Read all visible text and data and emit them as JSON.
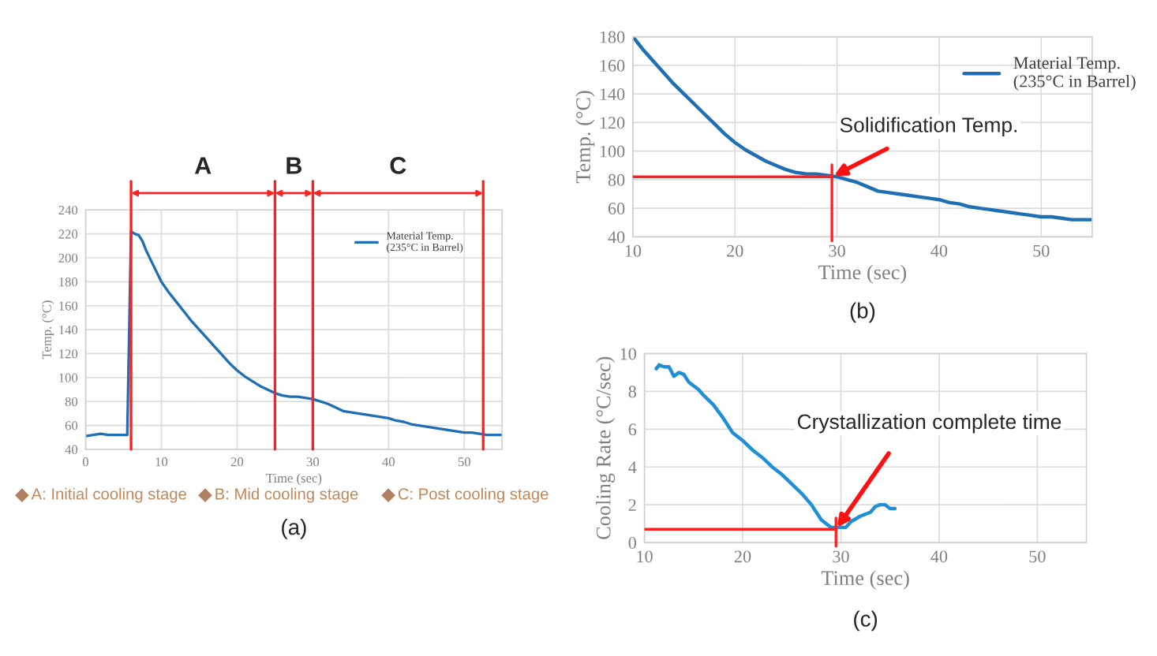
{
  "chart_data": [
    {
      "type": "line",
      "xlabel": "Time (sec)",
      "ylabel": "Temp. (°C)",
      "xlim": [
        0,
        55
      ],
      "ylim": [
        40,
        240
      ],
      "xticks": [
        0,
        10,
        20,
        30,
        40,
        50
      ],
      "yticks": [
        40,
        60,
        80,
        100,
        120,
        140,
        160,
        180,
        200,
        220,
        240
      ],
      "grid": true,
      "legend": "top right",
      "series": [
        {
          "name": "Material Temp.\n(235°C in Barrel)",
          "color": "#1f6fb5",
          "x": [
            0,
            1,
            2,
            3,
            4,
            5,
            5.5,
            6,
            6.5,
            7,
            7.5,
            8,
            9,
            10,
            11,
            12,
            13,
            14,
            15,
            16,
            17,
            18,
            19,
            20,
            21,
            22,
            23,
            24,
            25,
            26,
            27,
            28,
            29,
            30,
            31,
            32,
            33,
            34,
            35,
            36,
            37,
            38,
            39,
            40,
            41,
            42,
            43,
            44,
            45,
            46,
            47,
            48,
            49,
            50,
            51,
            52,
            53,
            54,
            55
          ],
          "values": [
            51,
            52,
            53,
            52,
            52,
            52,
            52,
            222,
            220,
            219,
            214,
            206,
            193,
            180,
            171,
            163,
            155,
            147,
            140,
            133,
            126,
            119,
            112,
            106,
            101,
            97,
            93,
            90,
            87,
            85,
            84,
            84,
            83,
            82,
            80,
            78,
            75,
            72,
            71,
            70,
            69,
            68,
            67,
            66,
            64,
            63,
            61,
            60,
            59,
            58,
            57,
            56,
            55,
            54,
            54,
            53,
            52,
            52,
            52
          ]
        }
      ],
      "ref_lines": [
        {
          "axis": "x",
          "value": 6,
          "color": "#ff2020"
        },
        {
          "axis": "x",
          "value": 25,
          "color": "#ff2020"
        },
        {
          "axis": "x",
          "value": 30,
          "color": "#ff2020"
        },
        {
          "axis": "x",
          "value": 52.5,
          "color": "#ff2020"
        }
      ],
      "annotations": [
        "A",
        "B",
        "C",
        "A: Initial cooling stage",
        "B: Mid cooling stage",
        "C: Post cooling stage",
        "(a)"
      ]
    },
    {
      "type": "line",
      "xlabel": "Time (sec)",
      "ylabel": "Temp. (°C)",
      "xlim": [
        10,
        55
      ],
      "ylim": [
        40,
        180
      ],
      "xticks": [
        10,
        20,
        30,
        40,
        50
      ],
      "yticks": [
        40,
        60,
        80,
        100,
        120,
        140,
        160,
        180
      ],
      "grid": true,
      "legend": "top right",
      "series": [
        {
          "name": "Material Temp.\n(235°C in Barrel)",
          "color": "#1f6fb5",
          "x": [
            10,
            11,
            12,
            13,
            14,
            15,
            16,
            17,
            18,
            19,
            20,
            21,
            22,
            23,
            24,
            25,
            26,
            27,
            28,
            29,
            30,
            31,
            32,
            33,
            34,
            35,
            36,
            37,
            38,
            39,
            40,
            41,
            42,
            43,
            44,
            45,
            46,
            47,
            48,
            49,
            50,
            51,
            52,
            53,
            54,
            55
          ],
          "values": [
            180,
            171,
            163,
            155,
            147,
            140,
            133,
            126,
            119,
            112,
            106,
            101,
            97,
            93,
            90,
            87,
            85,
            84,
            84,
            83,
            82,
            80,
            78,
            75,
            72,
            71,
            70,
            69,
            68,
            67,
            66,
            64,
            63,
            61,
            60,
            59,
            58,
            57,
            56,
            55,
            54,
            54,
            53,
            52,
            52,
            52
          ]
        }
      ],
      "ref_lines": [
        {
          "axis": "y",
          "value": 82,
          "color": "#ff2020"
        },
        {
          "axis": "x",
          "value": 29.5,
          "color": "#ff2020"
        }
      ],
      "annotations": [
        {
          "text": "Solidification Temp.",
          "x": 29.5,
          "y": 82
        },
        "(b)"
      ]
    },
    {
      "type": "line",
      "xlabel": "Time (sec)",
      "ylabel": "Cooling Rate (°C/sec)",
      "xlim": [
        10,
        55
      ],
      "ylim": [
        0,
        10
      ],
      "xticks": [
        10,
        20,
        30,
        40,
        50
      ],
      "yticks": [
        0,
        2,
        4,
        6,
        8,
        10
      ],
      "grid": true,
      "series": [
        {
          "color": "#1f8fd6",
          "x": [
            11.2,
            11.5,
            12,
            12.5,
            13,
            13.5,
            14,
            14.5,
            15,
            15.5,
            16,
            17,
            18,
            19,
            20,
            21,
            22,
            23,
            24,
            25,
            26,
            27,
            28,
            29,
            30,
            30.5,
            31,
            32,
            33,
            33.5,
            34,
            34.5,
            35,
            35.5
          ],
          "values": [
            9.2,
            9.4,
            9.3,
            9.3,
            8.8,
            9.0,
            8.9,
            8.5,
            8.3,
            8.1,
            7.8,
            7.3,
            6.6,
            5.8,
            5.4,
            4.9,
            4.5,
            4.0,
            3.6,
            3.1,
            2.6,
            2.0,
            1.2,
            0.8,
            0.8,
            0.8,
            1.1,
            1.4,
            1.6,
            1.9,
            2.0,
            2.0,
            1.8,
            1.8
          ]
        }
      ],
      "ref_lines": [
        {
          "axis": "y",
          "value": 0.7,
          "color": "#ff2020"
        },
        {
          "axis": "x",
          "value": 29.5,
          "color": "#ff2020"
        }
      ],
      "annotations": [
        {
          "text": "Crystallization complete time",
          "x": 29.5,
          "y": 0.7
        },
        "(c)"
      ]
    }
  ]
}
